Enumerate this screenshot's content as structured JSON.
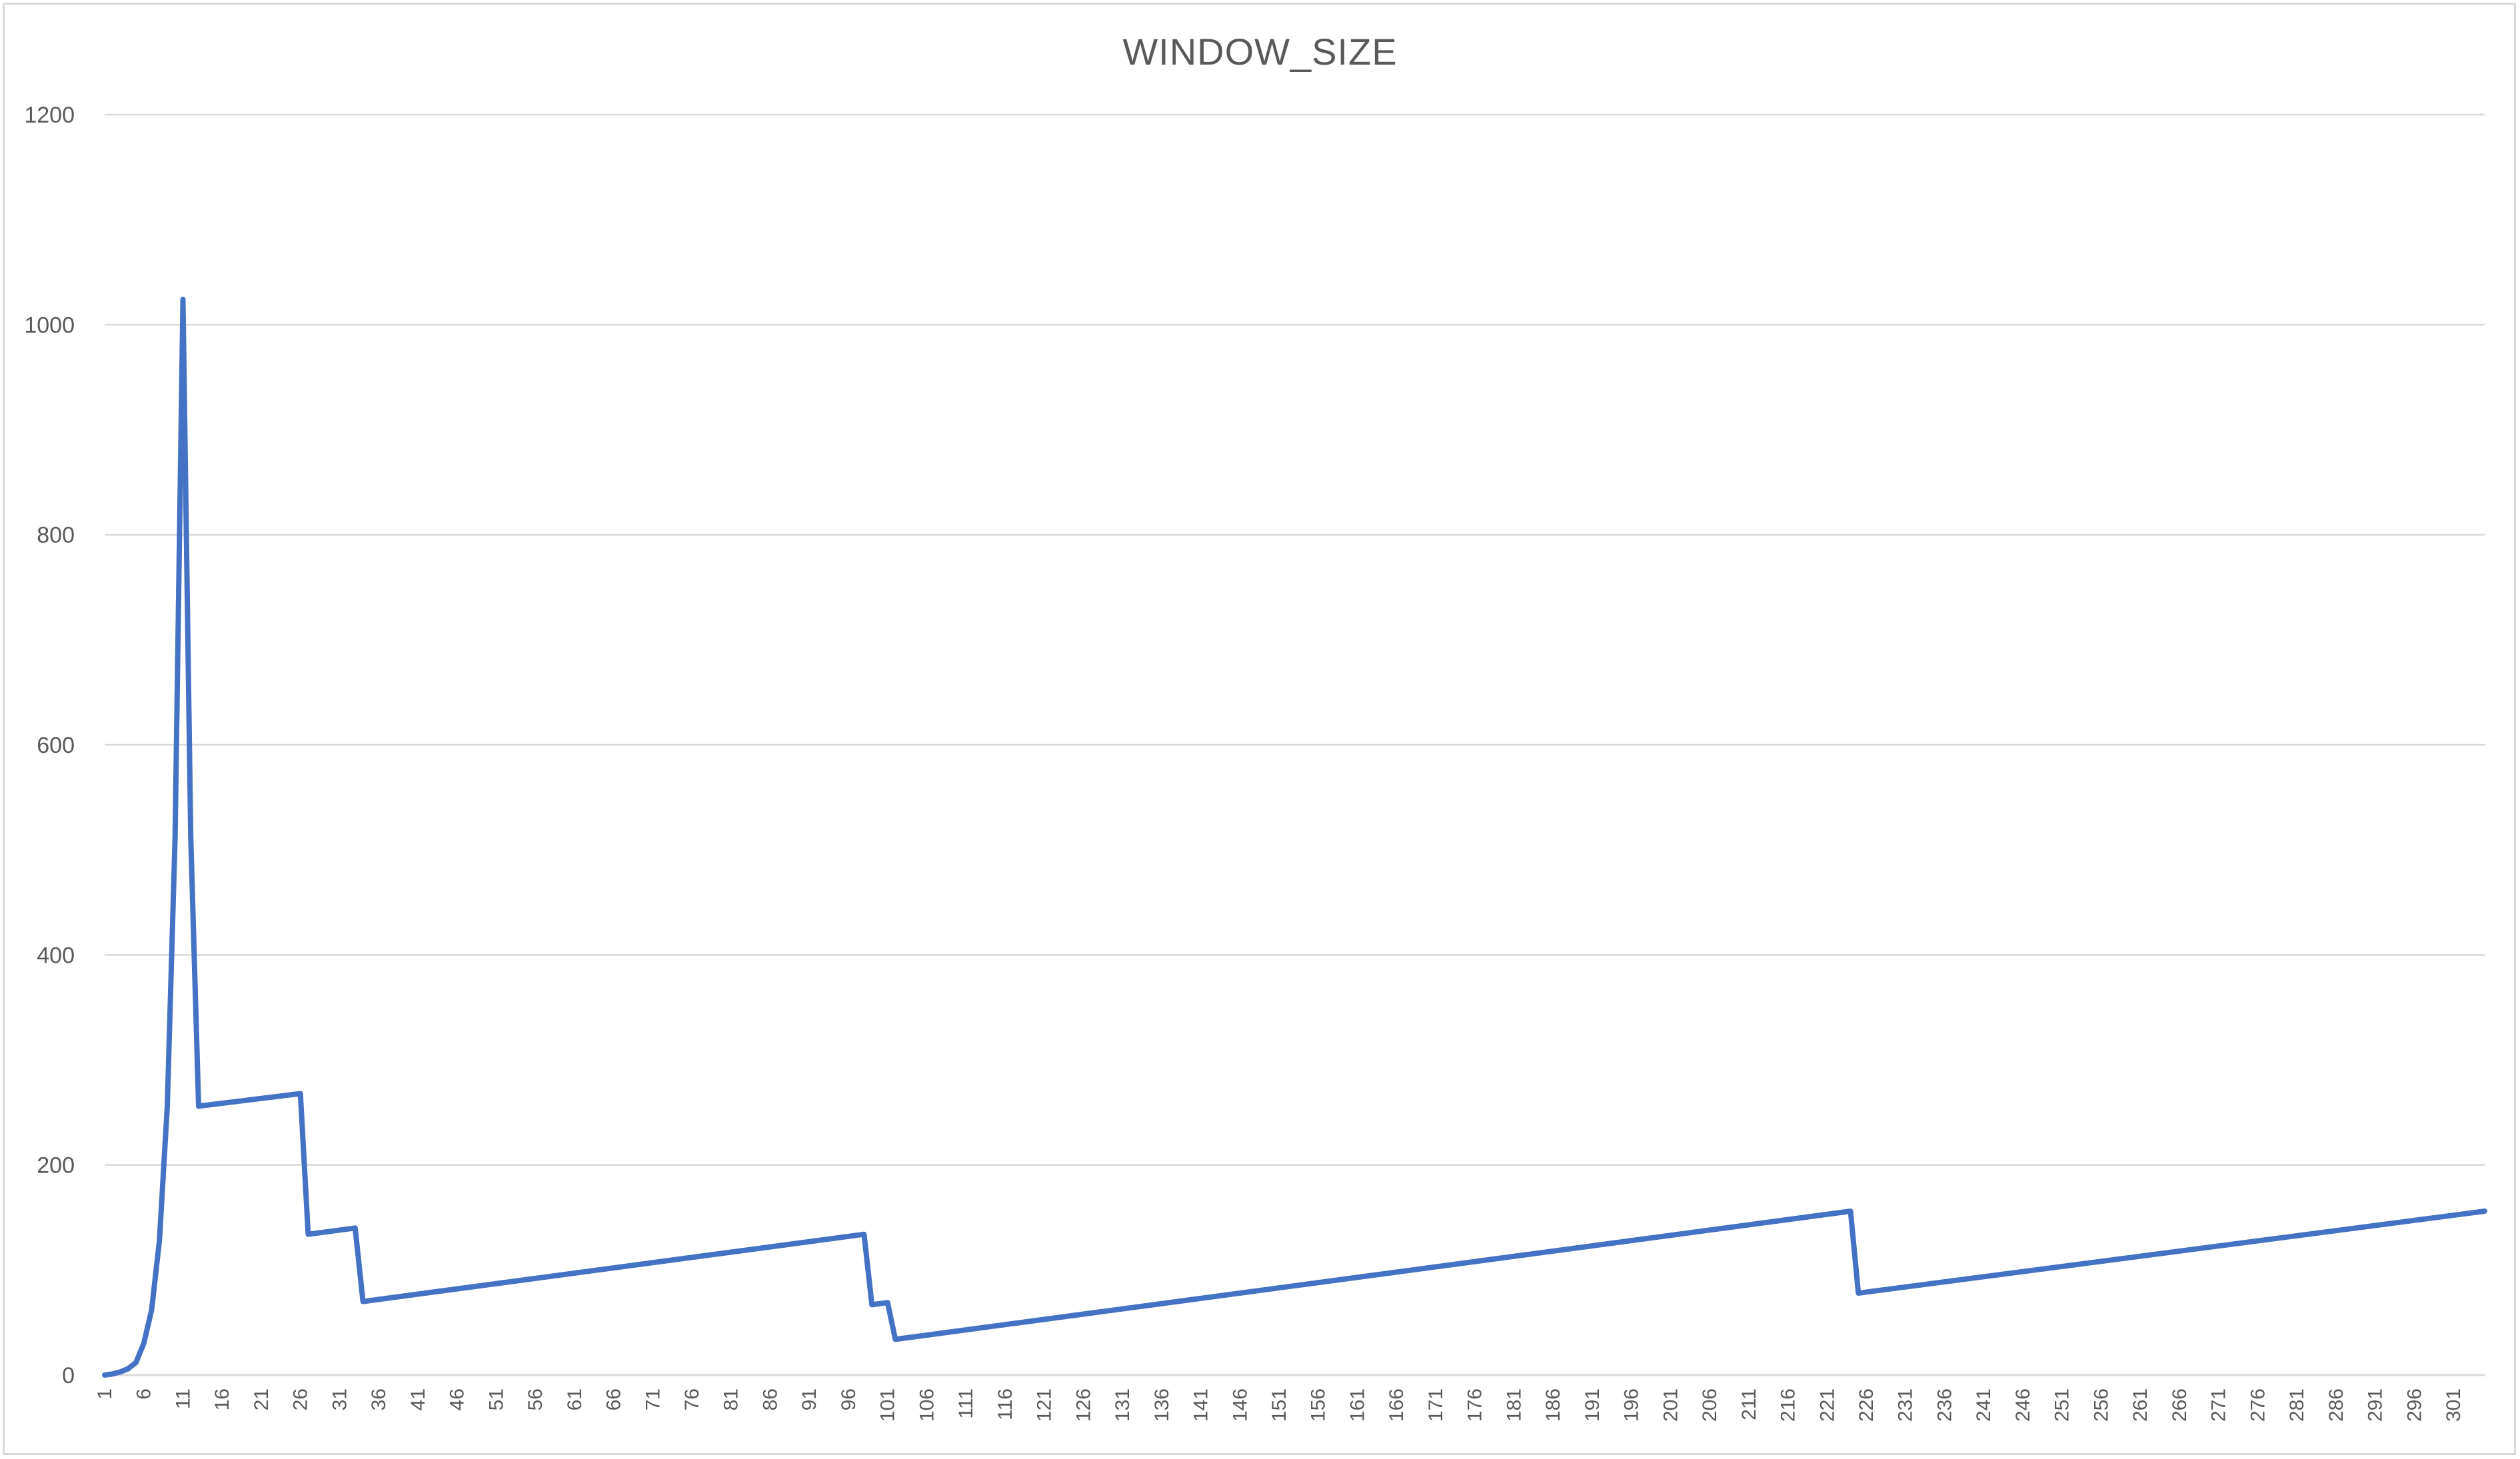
{
  "chart_data": {
    "type": "line",
    "title": "WINDOW_SIZE",
    "xlabel": "",
    "ylabel": "",
    "xlim": [
      1,
      305
    ],
    "ylim": [
      0,
      1200
    ],
    "yticks": [
      0,
      200,
      400,
      600,
      800,
      1000,
      1200
    ],
    "xtick_start": 1,
    "xtick_step": 5,
    "xtick_end": 301,
    "grid": "horizontal",
    "legend": "none",
    "series": [
      {
        "color": "#4472c4",
        "points": [
          [
            1,
            0
          ],
          [
            2,
            1
          ],
          [
            3,
            3
          ],
          [
            4,
            6
          ],
          [
            5,
            12
          ],
          [
            6,
            30
          ],
          [
            7,
            62
          ],
          [
            8,
            128
          ],
          [
            9,
            256
          ],
          [
            10,
            512
          ],
          [
            11,
            1024
          ],
          [
            12,
            512
          ],
          [
            13,
            256
          ],
          [
            26,
            268
          ],
          [
            27,
            134
          ],
          [
            33,
            140
          ],
          [
            34,
            70
          ],
          [
            98,
            134
          ],
          [
            99,
            67
          ],
          [
            101,
            69
          ],
          [
            102,
            34
          ],
          [
            224,
            156
          ],
          [
            225,
            78
          ],
          [
            305,
            156
          ]
        ]
      }
    ]
  }
}
